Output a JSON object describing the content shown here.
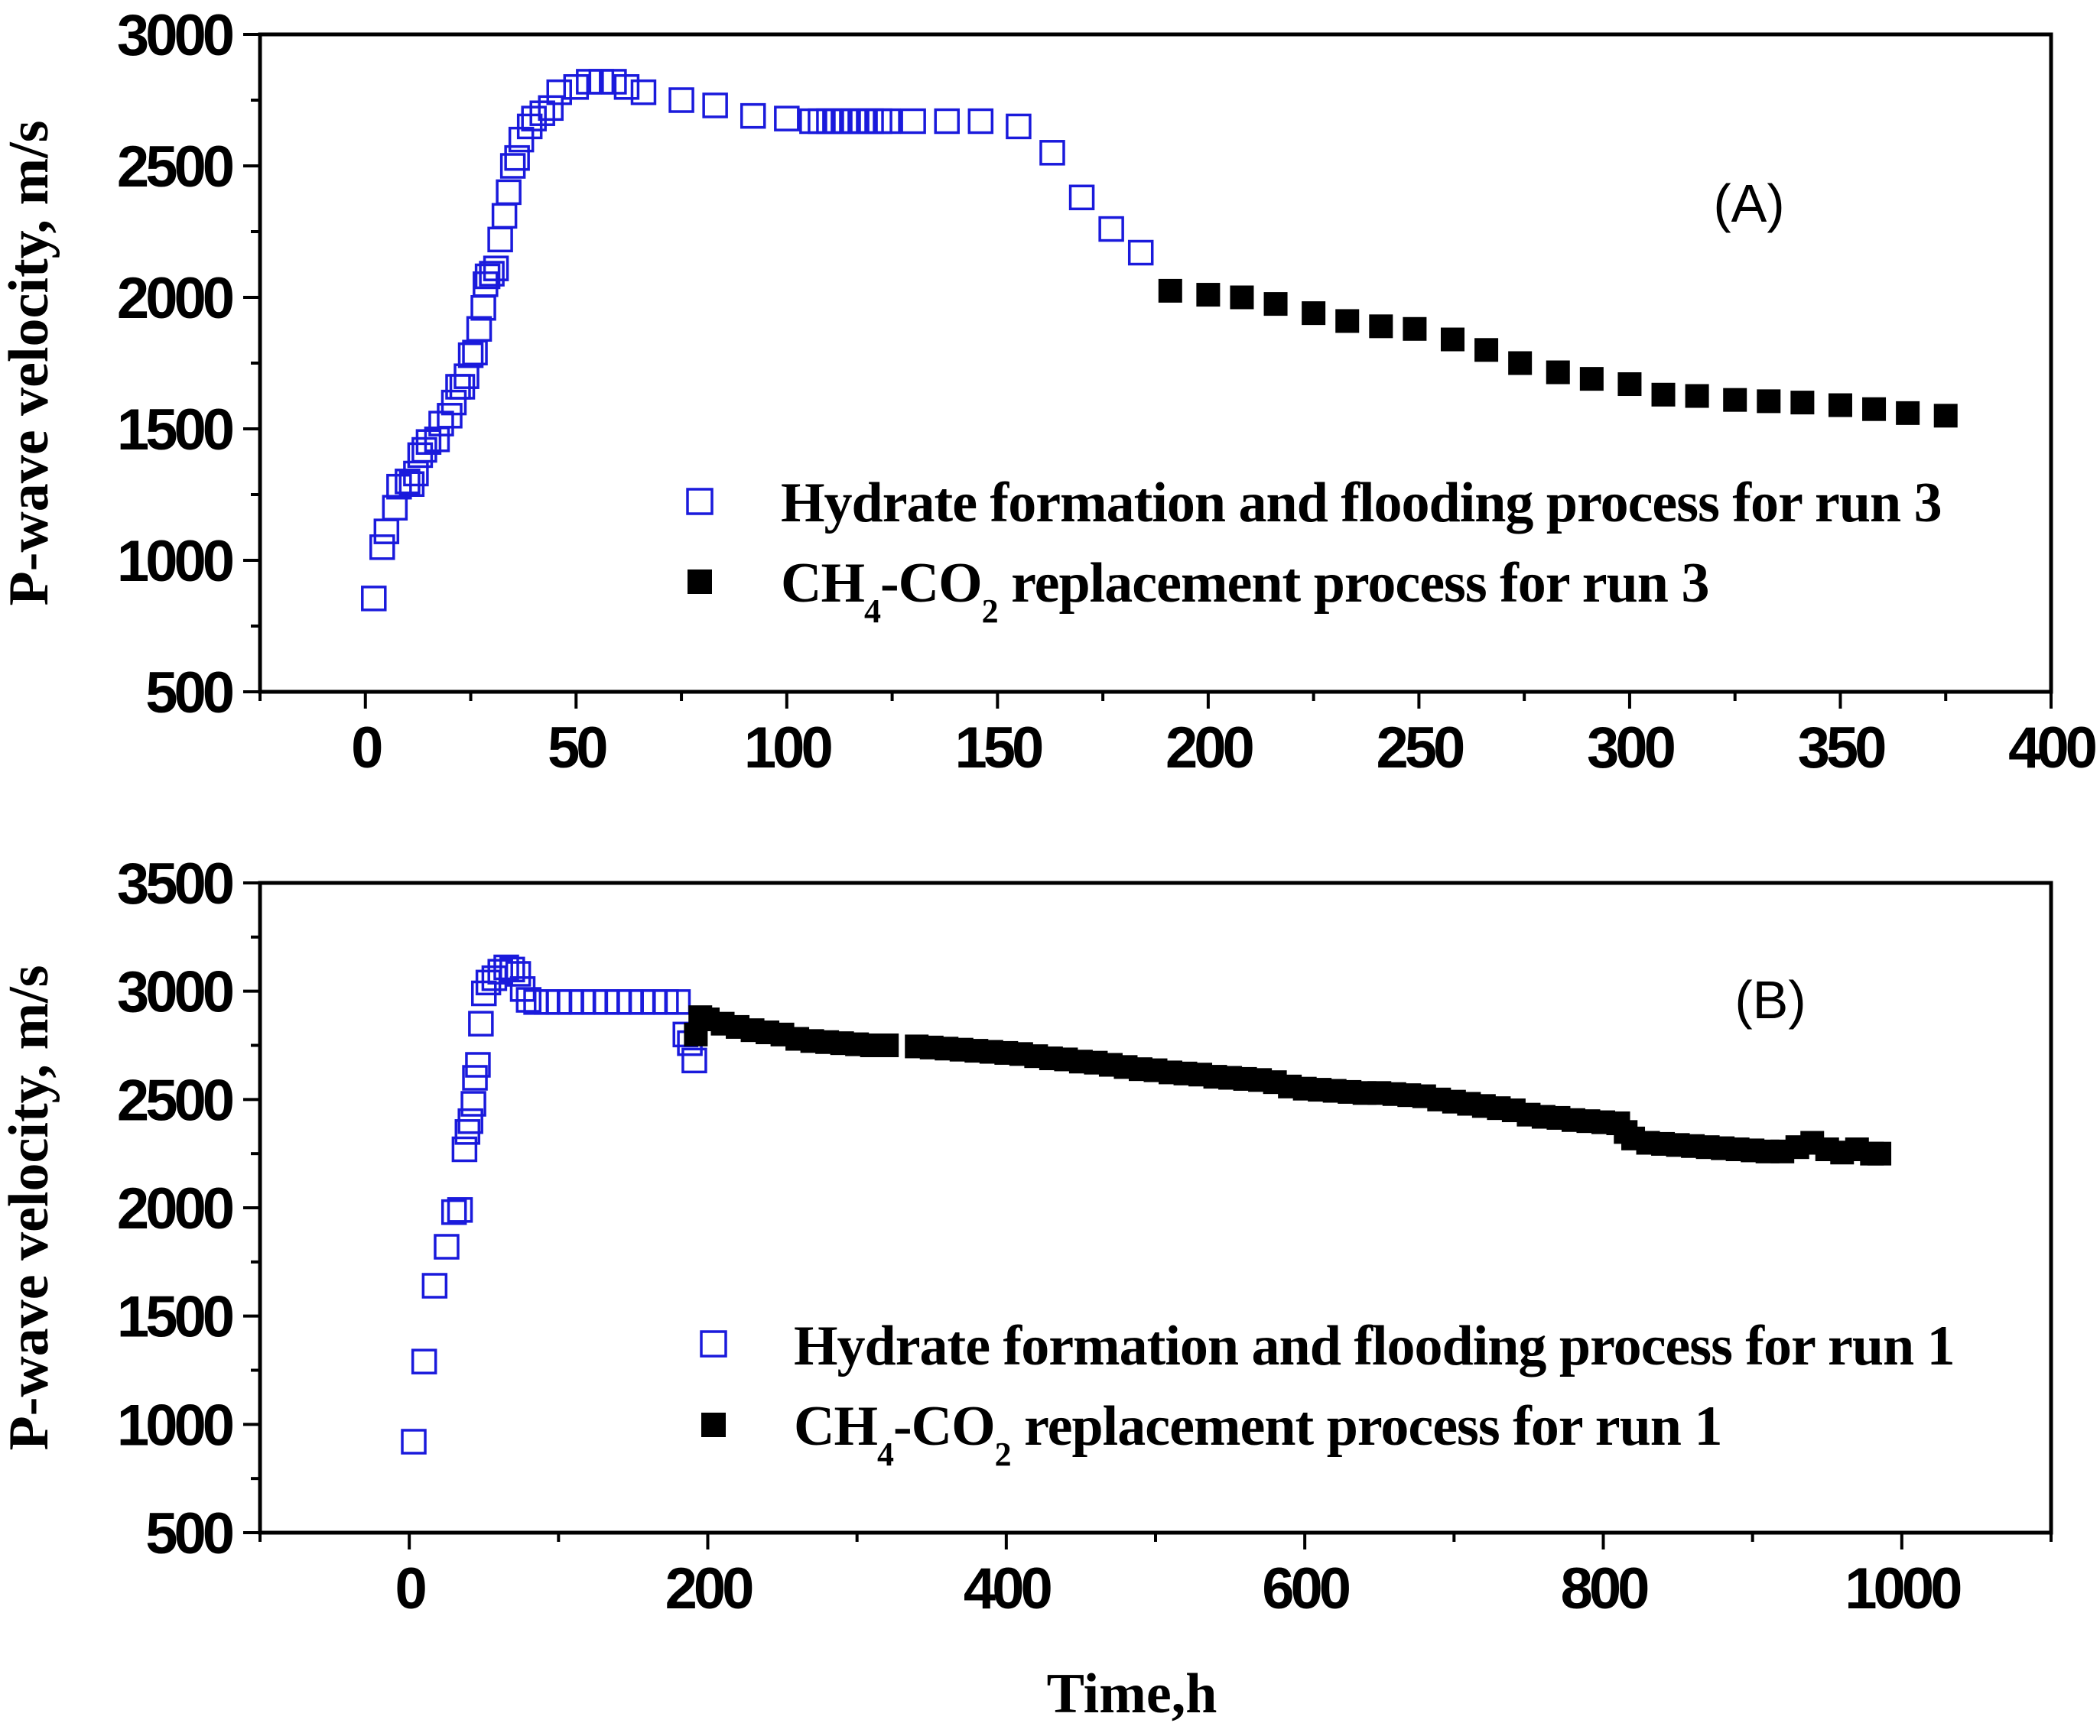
{
  "chart_data": [
    {
      "type": "scatter",
      "panel_label": "(A)",
      "xlabel": "",
      "ylabel": "P-wave velocity, m/s",
      "xlim": [
        -25,
        400
      ],
      "ylim": [
        500,
        3000
      ],
      "xticks": [
        0,
        50,
        100,
        150,
        200,
        250,
        300,
        350,
        400
      ],
      "xtick_labels": [
        "0",
        "50",
        "100",
        "150",
        "200",
        "250",
        "300",
        "350",
        "400"
      ],
      "yticks": [
        500,
        1000,
        1500,
        2000,
        2500,
        3000
      ],
      "ytick_labels": [
        "500",
        "1000",
        "1500",
        "2000",
        "2500",
        "3000"
      ],
      "grid": false,
      "legend_position": "center-right",
      "series": [
        {
          "name": "Hydrate formation and flooding process for run 3",
          "legend_main": "Hydrate formation and flooding process for run 3",
          "marker": "open-square",
          "color": "#1a1adc",
          "points": [
            [
              2,
              855
            ],
            [
              4,
              1050
            ],
            [
              5,
              1110
            ],
            [
              7,
              1200
            ],
            [
              8,
              1280
            ],
            [
              10,
              1300
            ],
            [
              11,
              1290
            ],
            [
              12,
              1330
            ],
            [
              13,
              1400
            ],
            [
              14,
              1420
            ],
            [
              15,
              1450
            ],
            [
              17,
              1460
            ],
            [
              18,
              1520
            ],
            [
              20,
              1550
            ],
            [
              21,
              1600
            ],
            [
              22,
              1660
            ],
            [
              23,
              1660
            ],
            [
              24,
              1700
            ],
            [
              25,
              1780
            ],
            [
              26,
              1790
            ],
            [
              27,
              1880
            ],
            [
              28,
              1960
            ],
            [
              28.5,
              2050
            ],
            [
              29,
              2080
            ],
            [
              30,
              2090
            ],
            [
              31,
              2110
            ],
            [
              32,
              2220
            ],
            [
              33,
              2310
            ],
            [
              34,
              2400
            ],
            [
              35,
              2500
            ],
            [
              36,
              2530
            ],
            [
              37,
              2600
            ],
            [
              39,
              2650
            ],
            [
              40,
              2680
            ],
            [
              42,
              2700
            ],
            [
              44,
              2720
            ],
            [
              46,
              2780
            ],
            [
              50,
              2800
            ],
            [
              53,
              2820
            ],
            [
              56,
              2820
            ],
            [
              59,
              2820
            ],
            [
              62,
              2800
            ],
            [
              66,
              2780
            ],
            [
              75,
              2750
            ],
            [
              83,
              2730
            ],
            [
              92,
              2690
            ],
            [
              100,
              2680
            ],
            [
              106,
              2670
            ],
            [
              108,
              2670
            ],
            [
              110,
              2670
            ],
            [
              112,
              2670
            ],
            [
              114,
              2670
            ],
            [
              116,
              2670
            ],
            [
              118,
              2670
            ],
            [
              120,
              2670
            ],
            [
              122,
              2670
            ],
            [
              124,
              2670
            ],
            [
              130,
              2670
            ],
            [
              138,
              2670
            ],
            [
              146,
              2670
            ],
            [
              155,
              2650
            ],
            [
              163,
              2550
            ],
            [
              170,
              2380
            ],
            [
              177,
              2260
            ],
            [
              184,
              2170
            ]
          ]
        },
        {
          "name": "CH4-CO2 replacement process for run 3",
          "legend_main": "CH",
          "legend_sub1": "4",
          "legend_mid": "-CO",
          "legend_sub2": "2",
          "legend_tail": " replacement process for run 3",
          "marker": "filled-square",
          "color": "#000000",
          "points": [
            [
              191,
              2025
            ],
            [
              200,
              2010
            ],
            [
              208,
              2000
            ],
            [
              216,
              1975
            ],
            [
              225,
              1940
            ],
            [
              233,
              1910
            ],
            [
              241,
              1890
            ],
            [
              249,
              1880
            ],
            [
              258,
              1840
            ],
            [
              266,
              1800
            ],
            [
              274,
              1750
            ],
            [
              283,
              1715
            ],
            [
              291,
              1690
            ],
            [
              300,
              1670
            ],
            [
              308,
              1630
            ],
            [
              316,
              1625
            ],
            [
              325,
              1610
            ],
            [
              333,
              1605
            ],
            [
              341,
              1600
            ],
            [
              350,
              1590
            ],
            [
              358,
              1575
            ],
            [
              366,
              1560
            ],
            [
              375,
              1550
            ]
          ]
        }
      ]
    },
    {
      "type": "scatter",
      "panel_label": "(B)",
      "xlabel": "Time,h",
      "ylabel": "P-wave velocity, m/s",
      "xlim": [
        -100,
        1100
      ],
      "ylim": [
        500,
        3500
      ],
      "xticks": [
        0,
        200,
        400,
        600,
        800,
        1000
      ],
      "xtick_labels": [
        "0",
        "200",
        "400",
        "600",
        "800",
        "1000"
      ],
      "yticks": [
        500,
        1000,
        1500,
        2000,
        2500,
        3000,
        3500
      ],
      "ytick_labels": [
        "500",
        "1000",
        "1500",
        "2000",
        "2500",
        "3000",
        "3500"
      ],
      "grid": false,
      "legend_position": "bottom-right",
      "series": [
        {
          "name": "Hydrate formation and flooding process for run 1",
          "legend_main": "Hydrate formation and flooding process for run 1",
          "marker": "open-square",
          "color": "#1a1adc",
          "points": [
            [
              3,
              920
            ],
            [
              10,
              1290
            ],
            [
              17,
              1640
            ],
            [
              25,
              1820
            ],
            [
              30,
              1980
            ],
            [
              34,
              1990
            ],
            [
              37,
              2270
            ],
            [
              39,
              2350
            ],
            [
              41,
              2400
            ],
            [
              43,
              2480
            ],
            [
              44,
              2600
            ],
            [
              46,
              2660
            ],
            [
              48,
              2850
            ],
            [
              50,
              2990
            ],
            [
              53,
              3040
            ],
            [
              57,
              3060
            ],
            [
              61,
              3090
            ],
            [
              65,
              3110
            ],
            [
              69,
              3100
            ],
            [
              73,
              3080
            ],
            [
              76,
              3010
            ],
            [
              80,
              2960
            ],
            [
              85,
              2950
            ],
            [
              92,
              2950
            ],
            [
              100,
              2950
            ],
            [
              108,
              2950
            ],
            [
              116,
              2950
            ],
            [
              124,
              2950
            ],
            [
              132,
              2950
            ],
            [
              140,
              2950
            ],
            [
              148,
              2950
            ],
            [
              156,
              2950
            ],
            [
              164,
              2950
            ],
            [
              172,
              2950
            ],
            [
              180,
              2950
            ],
            [
              185,
              2800
            ],
            [
              188,
              2760
            ],
            [
              191,
              2680
            ]
          ]
        },
        {
          "name": "CH4-CO2 replacement process for run 1",
          "legend_main": "CH",
          "legend_sub1": "4",
          "legend_mid": "-CO",
          "legend_sub2": "2",
          "legend_tail": " replacement process for run 1",
          "marker": "filled-square",
          "color": "#000000",
          "points_generator": "decreasing trace from 2880 m/s at ~195 h to 2250 m/s at ~985 h",
          "points": [
            [
              192,
              2800
            ],
            [
              195,
              2880
            ],
            [
              200,
              2870
            ],
            [
              210,
              2850
            ],
            [
              220,
              2835
            ],
            [
              230,
              2820
            ],
            [
              240,
              2810
            ],
            [
              250,
              2800
            ],
            [
              260,
              2780
            ],
            [
              270,
              2770
            ],
            [
              280,
              2765
            ],
            [
              290,
              2760
            ],
            [
              300,
              2755
            ],
            [
              310,
              2750
            ],
            [
              320,
              2750
            ],
            [
              340,
              2745
            ],
            [
              350,
              2740
            ],
            [
              360,
              2735
            ],
            [
              370,
              2730
            ],
            [
              380,
              2725
            ],
            [
              390,
              2720
            ],
            [
              400,
              2715
            ],
            [
              410,
              2710
            ],
            [
              420,
              2700
            ],
            [
              430,
              2690
            ],
            [
              440,
              2685
            ],
            [
              450,
              2675
            ],
            [
              460,
              2670
            ],
            [
              470,
              2660
            ],
            [
              480,
              2650
            ],
            [
              490,
              2640
            ],
            [
              500,
              2635
            ],
            [
              510,
              2625
            ],
            [
              520,
              2620
            ],
            [
              530,
              2615
            ],
            [
              540,
              2605
            ],
            [
              550,
              2600
            ],
            [
              560,
              2595
            ],
            [
              570,
              2590
            ],
            [
              580,
              2580
            ],
            [
              590,
              2560
            ],
            [
              600,
              2550
            ],
            [
              610,
              2545
            ],
            [
              620,
              2540
            ],
            [
              630,
              2535
            ],
            [
              640,
              2530
            ],
            [
              650,
              2530
            ],
            [
              660,
              2525
            ],
            [
              670,
              2520
            ],
            [
              680,
              2515
            ],
            [
              690,
              2500
            ],
            [
              700,
              2490
            ],
            [
              710,
              2480
            ],
            [
              720,
              2470
            ],
            [
              730,
              2460
            ],
            [
              740,
              2450
            ],
            [
              750,
              2430
            ],
            [
              760,
              2420
            ],
            [
              770,
              2415
            ],
            [
              780,
              2405
            ],
            [
              790,
              2400
            ],
            [
              800,
              2395
            ],
            [
              810,
              2390
            ],
            [
              815,
              2350
            ],
            [
              820,
              2320
            ],
            [
              830,
              2300
            ],
            [
              840,
              2295
            ],
            [
              850,
              2290
            ],
            [
              860,
              2285
            ],
            [
              870,
              2280
            ],
            [
              880,
              2275
            ],
            [
              890,
              2270
            ],
            [
              900,
              2265
            ],
            [
              910,
              2260
            ],
            [
              920,
              2260
            ],
            [
              930,
              2280
            ],
            [
              940,
              2300
            ],
            [
              950,
              2270
            ],
            [
              960,
              2255
            ],
            [
              970,
              2270
            ],
            [
              980,
              2250
            ],
            [
              985,
              2250
            ]
          ]
        }
      ]
    }
  ]
}
